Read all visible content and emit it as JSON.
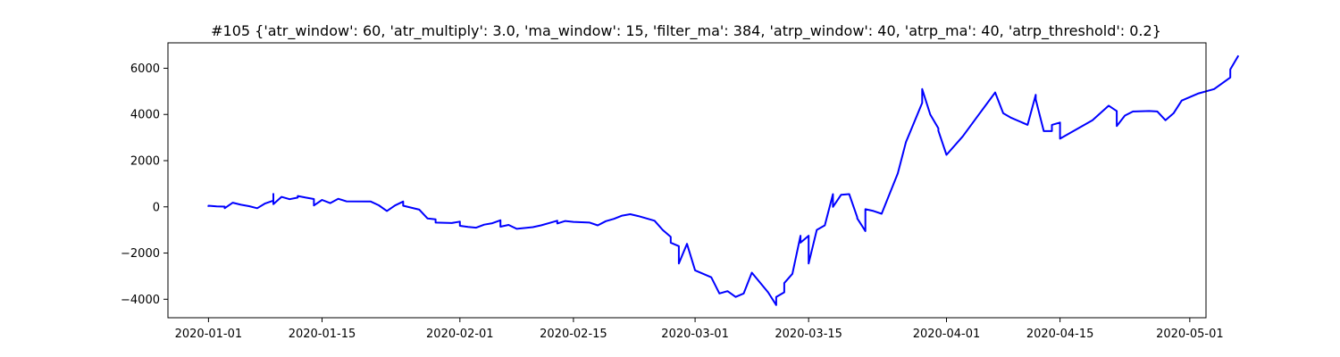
{
  "chart_data": {
    "type": "line",
    "title": "#105 {'atr_window': 60, 'atr_multiply': 3.0, 'ma_window': 15, 'filter_ma': 384, 'atrp_window': 40, 'atrp_ma': 40, 'atrp_threshold': 0.2}",
    "xlabel": "",
    "ylabel": "",
    "x_type": "date",
    "xlim": [
      "2019-12-27",
      "2020-05-03"
    ],
    "ylim": [
      -4800,
      7100
    ],
    "x_ticks": [
      "2020-01-01",
      "2020-01-15",
      "2020-02-01",
      "2020-02-15",
      "2020-03-01",
      "2020-03-15",
      "2020-04-01",
      "2020-04-15",
      "2020-05-01"
    ],
    "y_ticks": [
      -4000,
      -2000,
      0,
      2000,
      4000,
      6000
    ],
    "grid": false,
    "line_color": "#0000ff",
    "series": [
      {
        "points": [
          [
            "2020-01-01",
            0
          ],
          [
            "2020-01-01",
            50
          ],
          [
            "2020-01-02",
            20
          ],
          [
            "2020-01-03",
            10
          ],
          [
            "2020-01-03",
            -60
          ],
          [
            "2020-01-04",
            180
          ],
          [
            "2020-01-05",
            90
          ],
          [
            "2020-01-06",
            30
          ],
          [
            "2020-01-07",
            -60
          ],
          [
            "2020-01-08",
            150
          ],
          [
            "2020-01-09",
            270
          ],
          [
            "2020-01-09",
            560
          ],
          [
            "2020-01-09",
            120
          ],
          [
            "2020-01-10",
            430
          ],
          [
            "2020-01-11",
            330
          ],
          [
            "2020-01-12",
            400
          ],
          [
            "2020-01-12",
            470
          ],
          [
            "2020-01-13",
            400
          ],
          [
            "2020-01-14",
            340
          ],
          [
            "2020-01-14",
            60
          ],
          [
            "2020-01-15",
            300
          ],
          [
            "2020-01-16",
            160
          ],
          [
            "2020-01-17",
            350
          ],
          [
            "2020-01-18",
            240
          ],
          [
            "2020-01-21",
            230
          ],
          [
            "2020-01-22",
            70
          ],
          [
            "2020-01-23",
            -180
          ],
          [
            "2020-01-24",
            60
          ],
          [
            "2020-01-25",
            230
          ],
          [
            "2020-01-25",
            50
          ],
          [
            "2020-01-27",
            -120
          ],
          [
            "2020-01-28",
            -500
          ],
          [
            "2020-01-29",
            -540
          ],
          [
            "2020-01-29",
            -680
          ],
          [
            "2020-01-31",
            -700
          ],
          [
            "2020-02-01",
            -640
          ],
          [
            "2020-02-01",
            -820
          ],
          [
            "2020-02-02",
            -870
          ],
          [
            "2020-02-03",
            -900
          ],
          [
            "2020-02-04",
            -770
          ],
          [
            "2020-02-05",
            -710
          ],
          [
            "2020-02-06",
            -580
          ],
          [
            "2020-02-06",
            -860
          ],
          [
            "2020-02-07",
            -780
          ],
          [
            "2020-02-08",
            -950
          ],
          [
            "2020-02-10",
            -880
          ],
          [
            "2020-02-11",
            -800
          ],
          [
            "2020-02-12",
            -700
          ],
          [
            "2020-02-13",
            -600
          ],
          [
            "2020-02-13",
            -720
          ],
          [
            "2020-02-14",
            -610
          ],
          [
            "2020-02-15",
            -650
          ],
          [
            "2020-02-17",
            -680
          ],
          [
            "2020-02-18",
            -800
          ],
          [
            "2020-02-19",
            -620
          ],
          [
            "2020-02-20",
            -520
          ],
          [
            "2020-02-21",
            -380
          ],
          [
            "2020-02-22",
            -320
          ],
          [
            "2020-02-23",
            -400
          ],
          [
            "2020-02-25",
            -600
          ],
          [
            "2020-02-26",
            -1000
          ],
          [
            "2020-02-27",
            -1300
          ],
          [
            "2020-02-27",
            -1550
          ],
          [
            "2020-02-28",
            -1700
          ],
          [
            "2020-02-28",
            -2450
          ],
          [
            "2020-02-29",
            -1600
          ],
          [
            "2020-03-01",
            -2750
          ],
          [
            "2020-03-03",
            -3050
          ],
          [
            "2020-03-04",
            -3750
          ],
          [
            "2020-03-05",
            -3650
          ],
          [
            "2020-03-06",
            -3900
          ],
          [
            "2020-03-07",
            -3750
          ],
          [
            "2020-03-08",
            -2850
          ],
          [
            "2020-03-10",
            -3700
          ],
          [
            "2020-03-11",
            -4250
          ],
          [
            "2020-03-11",
            -3900
          ],
          [
            "2020-03-12",
            -3700
          ],
          [
            "2020-03-12",
            -3300
          ],
          [
            "2020-03-13",
            -2900
          ],
          [
            "2020-03-14",
            -1250
          ],
          [
            "2020-03-14",
            -1550
          ],
          [
            "2020-03-15",
            -1250
          ],
          [
            "2020-03-15",
            -2050
          ],
          [
            "2020-03-15",
            -2450
          ],
          [
            "2020-03-16",
            -1000
          ],
          [
            "2020-03-17",
            -800
          ],
          [
            "2020-03-18",
            550
          ],
          [
            "2020-03-18",
            0
          ],
          [
            "2020-03-19",
            520
          ],
          [
            "2020-03-20",
            550
          ],
          [
            "2020-03-21",
            -450
          ],
          [
            "2020-03-21",
            -500
          ],
          [
            "2020-03-22",
            -1050
          ],
          [
            "2020-03-22",
            -100
          ],
          [
            "2020-03-23",
            -180
          ],
          [
            "2020-03-24",
            -300
          ],
          [
            "2020-03-26",
            1450
          ],
          [
            "2020-03-27",
            2800
          ],
          [
            "2020-03-29",
            4500
          ],
          [
            "2020-03-29",
            5100
          ],
          [
            "2020-03-30",
            4000
          ],
          [
            "2020-03-31",
            3400
          ],
          [
            "2020-03-31",
            3300
          ],
          [
            "2020-04-01",
            2250
          ],
          [
            "2020-04-03",
            3050
          ],
          [
            "2020-04-05",
            4000
          ],
          [
            "2020-04-07",
            4950
          ],
          [
            "2020-04-08",
            4050
          ],
          [
            "2020-04-09",
            3850
          ],
          [
            "2020-04-11",
            3550
          ],
          [
            "2020-04-12",
            4850
          ],
          [
            "2020-04-12",
            4650
          ],
          [
            "2020-04-13",
            3280
          ],
          [
            "2020-04-14",
            3280
          ],
          [
            "2020-04-14",
            3550
          ],
          [
            "2020-04-15",
            3650
          ],
          [
            "2020-04-15",
            2950
          ],
          [
            "2020-04-19",
            3750
          ],
          [
            "2020-04-21",
            4380
          ],
          [
            "2020-04-22",
            4150
          ],
          [
            "2020-04-22",
            3500
          ],
          [
            "2020-04-23",
            3950
          ],
          [
            "2020-04-24",
            4130
          ],
          [
            "2020-04-26",
            4150
          ],
          [
            "2020-04-27",
            4130
          ],
          [
            "2020-04-28",
            3750
          ],
          [
            "2020-04-29",
            4050
          ],
          [
            "2020-04-30",
            4600
          ],
          [
            "2020-05-02",
            4900
          ],
          [
            "2020-05-04",
            5100
          ],
          [
            "2020-05-06",
            5600
          ],
          [
            "2020-05-06",
            5950
          ],
          [
            "2020-05-07",
            6550
          ]
        ]
      }
    ]
  }
}
